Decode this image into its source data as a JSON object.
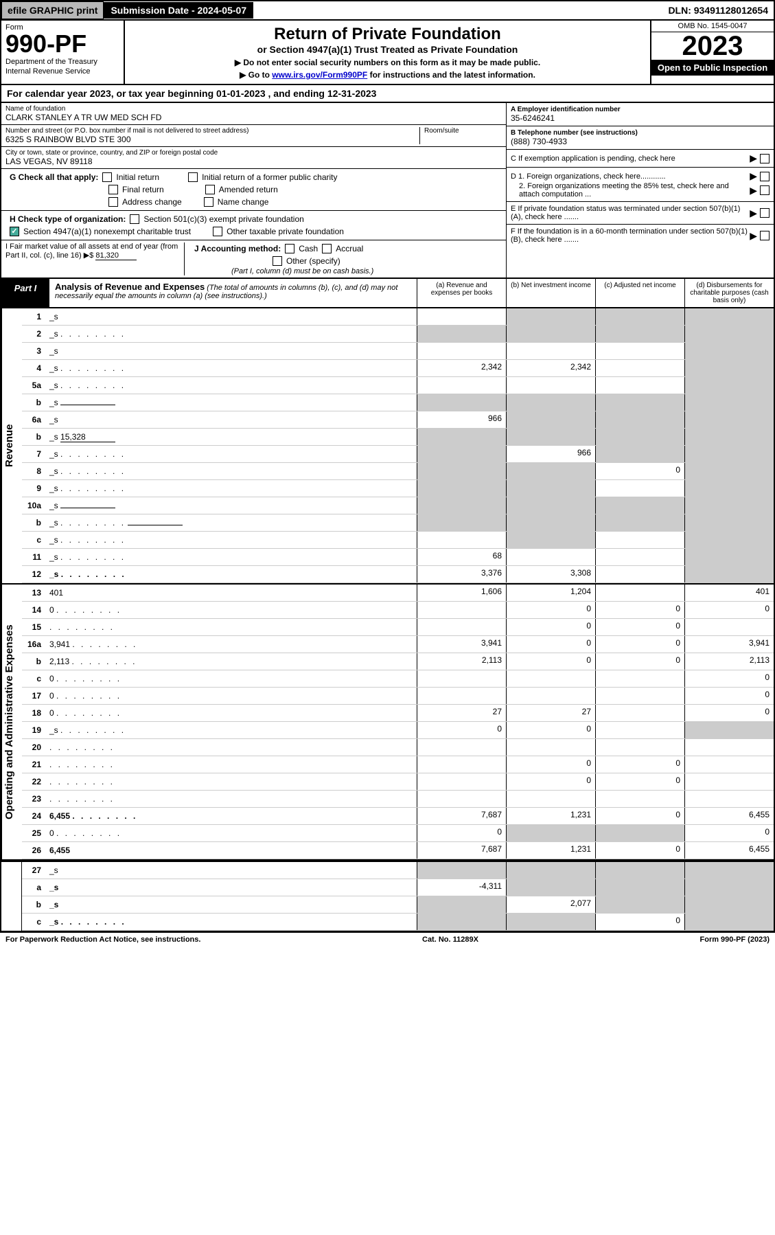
{
  "topbar": {
    "efile": "efile GRAPHIC print",
    "submission": "Submission Date - 2024-05-07",
    "dln": "DLN: 93491128012654"
  },
  "header": {
    "form_label": "Form",
    "form_number": "990-PF",
    "dept1": "Department of the Treasury",
    "dept2": "Internal Revenue Service",
    "title": "Return of Private Foundation",
    "subtitle": "or Section 4947(a)(1) Trust Treated as Private Foundation",
    "instr1": "▶ Do not enter social security numbers on this form as it may be made public.",
    "instr2_pre": "▶ Go to ",
    "instr2_link": "www.irs.gov/Form990PF",
    "instr2_post": " for instructions and the latest information.",
    "omb": "OMB No. 1545-0047",
    "year": "2023",
    "open": "Open to Public Inspection"
  },
  "cal_year": "For calendar year 2023, or tax year beginning 01-01-2023                           , and ending 12-31-2023",
  "info": {
    "name_label": "Name of foundation",
    "name": "CLARK STANLEY A TR UW MED SCH FD",
    "addr_label": "Number and street (or P.O. box number if mail is not delivered to street address)",
    "addr": "6325 S RAINBOW BLVD STE 300",
    "room_label": "Room/suite",
    "city_label": "City or town, state or province, country, and ZIP or foreign postal code",
    "city": "LAS VEGAS, NV  89118",
    "ein_label": "A Employer identification number",
    "ein": "35-6246241",
    "phone_label": "B Telephone number (see instructions)",
    "phone": "(888) 730-4933",
    "c_label": "C If exemption application is pending, check here",
    "d1": "D 1. Foreign organizations, check here............",
    "d2": "2. Foreign organizations meeting the 85% test, check here and attach computation ...",
    "e": "E  If private foundation status was terminated under section 507(b)(1)(A), check here .......",
    "f": "F  If the foundation is in a 60-month termination under section 507(b)(1)(B), check here .......",
    "g_label": "G Check all that apply:",
    "g_initial": "Initial return",
    "g_initial_former": "Initial return of a former public charity",
    "g_final": "Final return",
    "g_amended": "Amended return",
    "g_address": "Address change",
    "g_name": "Name change",
    "h_label": "H Check type of organization:",
    "h_501c3": "Section 501(c)(3) exempt private foundation",
    "h_4947": "Section 4947(a)(1) nonexempt charitable trust",
    "h_other": "Other taxable private foundation",
    "i_label": "I Fair market value of all assets at end of year (from Part II, col. (c), line 16) ▶$ ",
    "i_value": "81,320",
    "j_label": "J Accounting method:",
    "j_cash": "Cash",
    "j_accrual": "Accrual",
    "j_other": "Other (specify)",
    "j_note": "(Part I, column (d) must be on cash basis.)"
  },
  "part1": {
    "label": "Part I",
    "title": "Analysis of Revenue and Expenses",
    "subtitle": " (The total of amounts in columns (b), (c), and (d) may not necessarily equal the amounts in column (a) (see instructions).)",
    "col_a": "(a)   Revenue and expenses per books",
    "col_b": "(b)   Net investment income",
    "col_c": "(c)   Adjusted net income",
    "col_d": "(d)   Disbursements for charitable purposes (cash basis only)"
  },
  "sections": {
    "revenue": "Revenue",
    "expenses": "Operating and Administrative Expenses"
  },
  "rows": [
    {
      "n": "1",
      "d": "_s",
      "a": "",
      "b": "_s",
      "c": "_s"
    },
    {
      "n": "2",
      "d": "_s",
      "dots": true,
      "a": "_s",
      "b": "_s",
      "c": "_s"
    },
    {
      "n": "3",
      "d": "_s",
      "a": "",
      "b": "",
      "c": ""
    },
    {
      "n": "4",
      "d": "_s",
      "dots": true,
      "a": "2,342",
      "b": "2,342",
      "c": ""
    },
    {
      "n": "5a",
      "d": "_s",
      "dots": true,
      "a": "",
      "b": "",
      "c": ""
    },
    {
      "n": "b",
      "d": "_s",
      "inline": true,
      "a": "_s",
      "b": "_s",
      "c": "_s"
    },
    {
      "n": "6a",
      "d": "_s",
      "a": "966",
      "b": "_s",
      "c": "_s"
    },
    {
      "n": "b",
      "d": "_s",
      "inline": true,
      "inlineval": "15,328",
      "a": "_s",
      "b": "_s",
      "c": "_s"
    },
    {
      "n": "7",
      "d": "_s",
      "dots": true,
      "a": "_s",
      "b": "966",
      "c": "_s"
    },
    {
      "n": "8",
      "d": "_s",
      "dots": true,
      "a": "_s",
      "b": "_s",
      "c": "0"
    },
    {
      "n": "9",
      "d": "_s",
      "dots": true,
      "a": "_s",
      "b": "_s",
      "c": ""
    },
    {
      "n": "10a",
      "d": "_s",
      "inline": true,
      "a": "_s",
      "b": "_s",
      "c": "_s"
    },
    {
      "n": "b",
      "d": "_s",
      "dots": true,
      "inline": true,
      "a": "_s",
      "b": "_s",
      "c": "_s"
    },
    {
      "n": "c",
      "d": "_s",
      "dots": true,
      "a": "",
      "b": "_s",
      "c": ""
    },
    {
      "n": "11",
      "d": "_s",
      "dots": true,
      "a": "68",
      "b": "",
      "c": ""
    },
    {
      "n": "12",
      "d": "_s",
      "bold": true,
      "dots": true,
      "a": "3,376",
      "b": "3,308",
      "c": ""
    }
  ],
  "exp_rows": [
    {
      "n": "13",
      "d": "401",
      "a": "1,606",
      "b": "1,204",
      "c": ""
    },
    {
      "n": "14",
      "d": "0",
      "dots": true,
      "a": "",
      "b": "0",
      "c": "0"
    },
    {
      "n": "15",
      "d": "",
      "dots": true,
      "a": "",
      "b": "0",
      "c": "0"
    },
    {
      "n": "16a",
      "d": "3,941",
      "dots": true,
      "a": "3,941",
      "b": "0",
      "c": "0"
    },
    {
      "n": "b",
      "d": "2,113",
      "dots": true,
      "a": "2,113",
      "b": "0",
      "c": "0"
    },
    {
      "n": "c",
      "d": "0",
      "dots": true,
      "a": "",
      "b": "",
      "c": ""
    },
    {
      "n": "17",
      "d": "0",
      "dots": true,
      "a": "",
      "b": "",
      "c": ""
    },
    {
      "n": "18",
      "d": "0",
      "dots": true,
      "a": "27",
      "b": "27",
      "c": ""
    },
    {
      "n": "19",
      "d": "_s",
      "dots": true,
      "a": "0",
      "b": "0",
      "c": ""
    },
    {
      "n": "20",
      "d": "",
      "dots": true,
      "a": "",
      "b": "",
      "c": ""
    },
    {
      "n": "21",
      "d": "",
      "dots": true,
      "a": "",
      "b": "0",
      "c": "0"
    },
    {
      "n": "22",
      "d": "",
      "dots": true,
      "a": "",
      "b": "0",
      "c": "0"
    },
    {
      "n": "23",
      "d": "",
      "dots": true,
      "a": "",
      "b": "",
      "c": ""
    },
    {
      "n": "24",
      "d": "6,455",
      "bold": true,
      "dots": true,
      "a": "7,687",
      "b": "1,231",
      "c": "0"
    },
    {
      "n": "25",
      "d": "0",
      "dots": true,
      "a": "0",
      "b": "_s",
      "c": "_s"
    },
    {
      "n": "26",
      "d": "6,455",
      "bold": true,
      "a": "7,687",
      "b": "1,231",
      "c": "0"
    }
  ],
  "bottom_rows": [
    {
      "n": "27",
      "d": "_s",
      "a": "_s",
      "b": "_s",
      "c": "_s"
    },
    {
      "n": "a",
      "d": "_s",
      "bold": true,
      "a": "-4,311",
      "b": "_s",
      "c": "_s"
    },
    {
      "n": "b",
      "d": "_s",
      "bold": true,
      "a": "_s",
      "b": "2,077",
      "c": "_s"
    },
    {
      "n": "c",
      "d": "_s",
      "bold": true,
      "dots": true,
      "a": "_s",
      "b": "_s",
      "c": "0"
    }
  ],
  "footer": {
    "left": "For Paperwork Reduction Act Notice, see instructions.",
    "center": "Cat. No. 11289X",
    "right": "Form 990-PF (2023)"
  }
}
